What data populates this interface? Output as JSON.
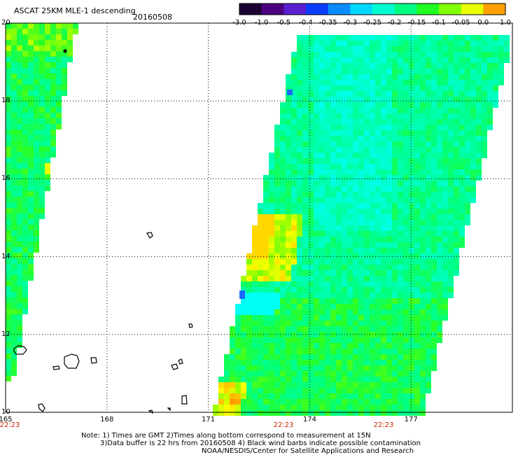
{
  "header": {
    "title": "ASCAT 25KM MLE-1 descending",
    "date": "20160508"
  },
  "colorbar": {
    "labels": [
      "-3.0",
      "-1.0",
      "-0.5",
      "-0.4",
      "-0.35",
      "-0.3",
      "-0.25",
      "-0.2",
      "-0.15",
      "-0.1",
      "-0.05",
      "0.0",
      "1.0"
    ],
    "colors": [
      "#1a0033",
      "#4a0080",
      "#5a1fd0",
      "#0a3cff",
      "#0a8cff",
      "#00d8ff",
      "#00ffd0",
      "#00ff80",
      "#20ff20",
      "#80ff00",
      "#e8ff00",
      "#ffa000",
      "#ff3000"
    ]
  },
  "map": {
    "x_ticks": [
      "165",
      "168",
      "171",
      "174",
      "177"
    ],
    "y_ticks": [
      "20",
      "18",
      "16",
      "14",
      "12",
      "10"
    ],
    "times": [
      "22:23",
      "22:23",
      "22:23"
    ],
    "lon_range": [
      165,
      180
    ],
    "lat_range": [
      10,
      20
    ]
  },
  "notes": {
    "line1": "Note: 1) Times are GMT 2)Times along bottom correspond to measurement at 15N",
    "line2": "3)Data buffer is 22 hrs from 20160508 4) Black wind barbs indicate possible contamination",
    "line3": "NOAA/NESDIS/Center for Satellite Applications and Research"
  }
}
